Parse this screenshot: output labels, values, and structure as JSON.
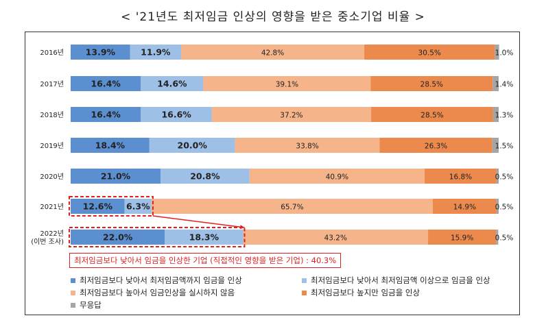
{
  "title": "< '21년도 최저임금 인상의 영향을 받은 중소기업 비율 >",
  "chart_data": {
    "type": "bar",
    "orientation": "horizontal",
    "stacked": true,
    "percent": true,
    "categories": [
      "2016년",
      "2017년",
      "2018년",
      "2019년",
      "2020년",
      "2021년",
      "2022년"
    ],
    "category_sublabels": [
      "",
      "",
      "",
      "",
      "",
      "",
      "(이번 조사)"
    ],
    "series": [
      {
        "name": "최저임금보다 낮아서 최저임금액까지 임금을 인상",
        "color": "#5b8fd0",
        "values": [
          13.9,
          16.4,
          16.4,
          18.4,
          21.0,
          12.6,
          22.0
        ],
        "labels": [
          "13.9%",
          "16.4%",
          "16.4%",
          "18.4%",
          "21.0%",
          "12.6%",
          "22.0%"
        ]
      },
      {
        "name": "최저임금보다 낮아서 최저임금액 이상으로 임금을 인상",
        "color": "#9ec0e6",
        "values": [
          11.9,
          14.6,
          16.6,
          20.0,
          20.8,
          6.3,
          18.3
        ],
        "labels": [
          "11.9%",
          "14.6%",
          "16.6%",
          "20.0%",
          "20.8%",
          "6.3%",
          "18.3%"
        ]
      },
      {
        "name": "최저임금보다 높아서 임금인상을 실시하지 않음",
        "color": "#f5b48a",
        "values": [
          42.8,
          39.1,
          37.2,
          33.8,
          40.9,
          65.7,
          43.2
        ],
        "labels": [
          "42.8%",
          "39.1%",
          "37.2%",
          "33.8%",
          "40.9%",
          "65.7%",
          "43.2%"
        ]
      },
      {
        "name": "최저임금보다 높지만 임금을 인상",
        "color": "#ec8a4e",
        "values": [
          30.5,
          28.5,
          28.5,
          26.3,
          16.8,
          14.9,
          15.9
        ],
        "labels": [
          "30.5%",
          "28.5%",
          "28.5%",
          "26.3%",
          "16.8%",
          "14.9%",
          "15.9%"
        ]
      },
      {
        "name": "무응답",
        "color": "#a5a5a5",
        "values": [
          1.0,
          1.4,
          1.3,
          1.5,
          0.5,
          0.5,
          0.5
        ],
        "labels": [
          "1.0%",
          "1.4%",
          "1.3%",
          "1.5%",
          "0.5%",
          "0.5%",
          "0.5%"
        ]
      }
    ],
    "highlighted": [
      "2021년",
      "2022년"
    ],
    "annotation": "최저임금보다 낮아서 임금을 인상한 기업 (직접적인 영향을 받은 기업) : 40.3%",
    "legend_position": "bottom"
  }
}
